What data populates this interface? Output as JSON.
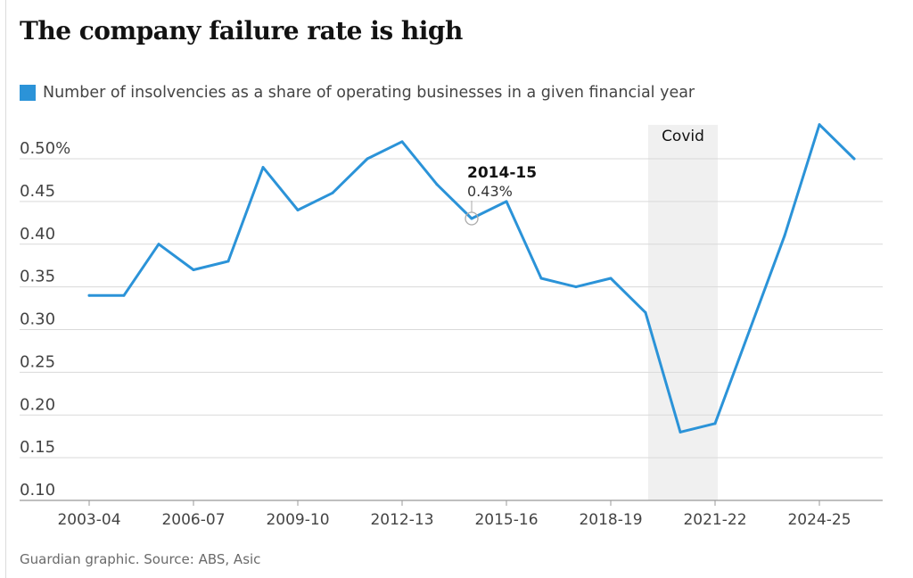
{
  "title": "The company failure rate is high",
  "source": "Guardian graphic. Source: ABS, Asic",
  "colors": {
    "series": "#2b93d8",
    "band": "#f0f0f0",
    "grid": "#d9d9d9",
    "axis": "#999999"
  },
  "chart_data": {
    "type": "line",
    "title": "The company failure rate is high",
    "ylim": [
      0.1,
      0.55
    ],
    "y_ticks": [
      0.1,
      0.15,
      0.2,
      0.25,
      0.3,
      0.35,
      0.4,
      0.45,
      0.5
    ],
    "y_tick_labels": [
      "0.10",
      "0.15",
      "0.20",
      "0.25",
      "0.30",
      "0.35",
      "0.40",
      "0.45",
      "0.50%"
    ],
    "x": [
      "2003-04",
      "2004-05",
      "2005-06",
      "2006-07",
      "2007-08",
      "2008-09",
      "2009-10",
      "2010-11",
      "2011-12",
      "2012-13",
      "2013-14",
      "2014-15",
      "2015-16",
      "2016-17",
      "2017-18",
      "2018-19",
      "2019-20",
      "2020-21",
      "2021-22",
      "2022-23",
      "2023-24",
      "2024-25",
      "2025-26"
    ],
    "x_tick_labels": [
      "2003-04",
      "2006-07",
      "2009-10",
      "2012-13",
      "2015-16",
      "2018-19",
      "2021-22",
      "2024-25"
    ],
    "series": [
      {
        "name": "Number of insolvencies as a share of operating businesses in a given financial year",
        "values": [
          0.34,
          0.34,
          0.4,
          0.37,
          0.38,
          0.49,
          0.44,
          0.46,
          0.5,
          0.52,
          0.47,
          0.43,
          0.45,
          0.36,
          0.35,
          0.36,
          0.32,
          0.18,
          0.19,
          0.3,
          0.41,
          0.54,
          0.5
        ]
      }
    ],
    "annotation": {
      "period": "2014-15",
      "value": "0.43%"
    },
    "shaded_band": {
      "label": "Covid",
      "from": "2019-20",
      "to": "2021-22"
    },
    "grid": true,
    "legend": "top-left"
  }
}
